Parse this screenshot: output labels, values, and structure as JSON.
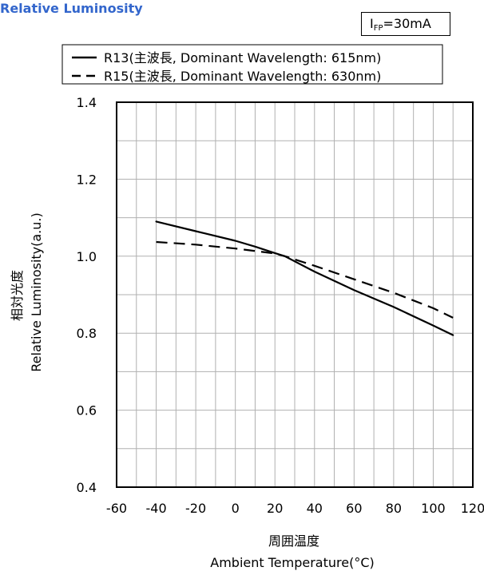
{
  "title": "Relative Luminosity",
  "condition": {
    "symbol": "I",
    "subscript": "FP",
    "value": "=30mA"
  },
  "chart_data": {
    "type": "line",
    "title": "Relative Luminosity",
    "xlabel_jp": "周囲温度",
    "xlabel": "Ambient Temperature(°C)",
    "ylabel_jp": "相対光度",
    "ylabel": "Relative Luminosity(a.u.)",
    "xlim": [
      -60,
      120
    ],
    "ylim": [
      0.4,
      1.4
    ],
    "x_ticks": [
      -60,
      -40,
      -20,
      0,
      20,
      40,
      60,
      80,
      100,
      120
    ],
    "y_ticks": [
      0.4,
      0.6,
      0.8,
      1.0,
      1.2,
      1.4
    ],
    "x_tick_labels": [
      "-60",
      "-40",
      "-20",
      "0",
      "20",
      "40",
      "60",
      "80",
      "100",
      "120"
    ],
    "y_tick_labels": [
      "0.4",
      "0.6",
      "0.8",
      "1.0",
      "1.2",
      "1.4"
    ],
    "x_minor_step": 10,
    "y_minor_step": 0.1,
    "grid": true,
    "legend_position": "top",
    "series": [
      {
        "name": "R13(主波長, Dominant Wavelength: 615nm)",
        "style": "solid",
        "x": [
          -40,
          -20,
          0,
          10,
          20,
          25,
          40,
          60,
          80,
          100,
          110
        ],
        "y": [
          1.09,
          1.065,
          1.04,
          1.025,
          1.008,
          1.0,
          0.96,
          0.912,
          0.868,
          0.82,
          0.795
        ]
      },
      {
        "name": "R15(主波長, Dominant Wavelength: 630nm)",
        "style": "dashed",
        "x": [
          -40,
          -20,
          0,
          20,
          25,
          40,
          60,
          80,
          100,
          110
        ],
        "y": [
          1.037,
          1.03,
          1.02,
          1.007,
          1.0,
          0.975,
          0.94,
          0.905,
          0.865,
          0.84
        ]
      }
    ]
  }
}
